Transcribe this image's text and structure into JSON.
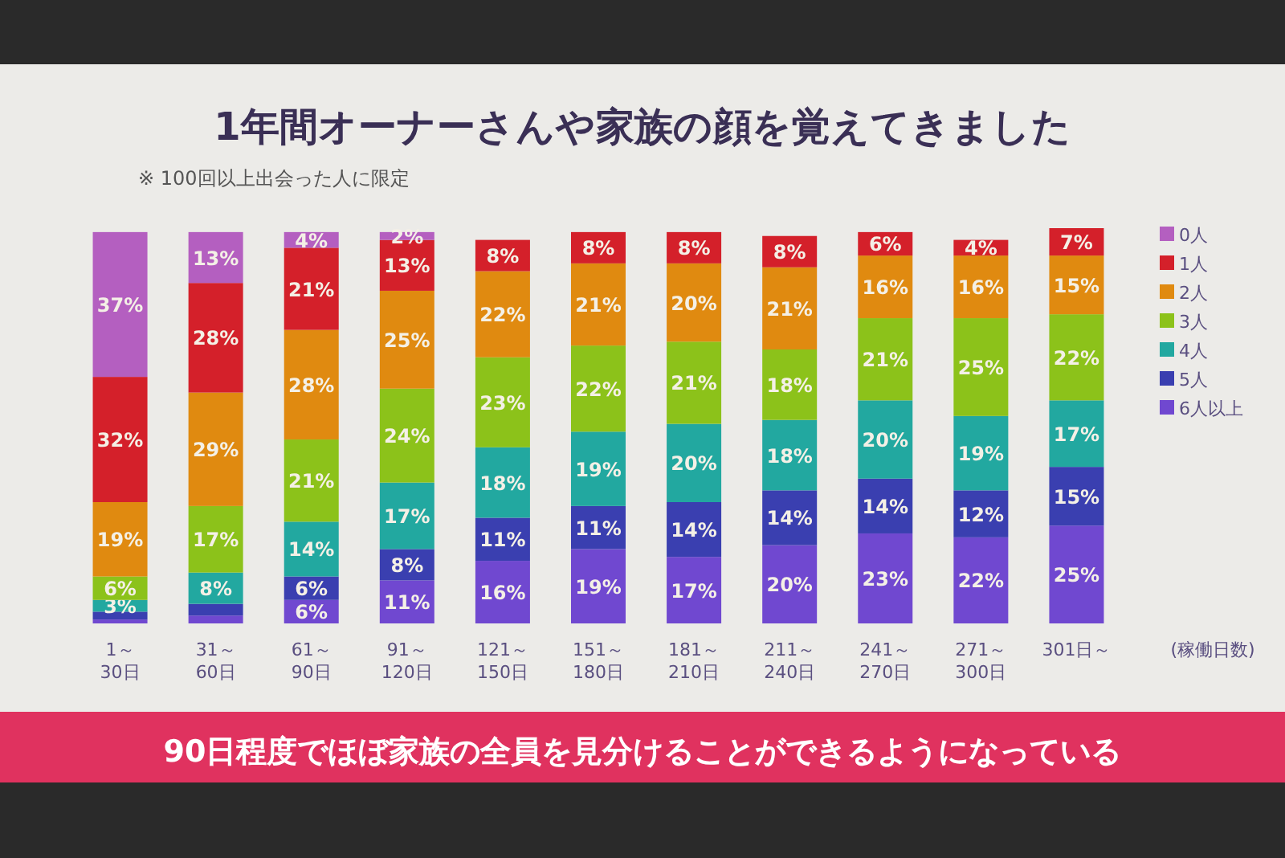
{
  "chart_data": {
    "type": "bar",
    "stacked": true,
    "title": "1年間オーナーさんや家族の顔を覚えてきました",
    "subtitle": "※ 100回以上出会った人に限定",
    "xlabel": "(稼働日数)",
    "annotations": [
      "90日程度でほぼ家族の全員を見分けることができるようになっている"
    ],
    "legend": "right",
    "categories": [
      "1～30日",
      "31～60日",
      "61～90日",
      "91～120日",
      "121～150日",
      "151～180日",
      "181～210日",
      "211～240日",
      "241～270日",
      "271～300日",
      "301日～"
    ],
    "series": [
      {
        "name": "6人以上",
        "color": "#7048d0",
        "values": [
          1,
          2,
          6,
          11,
          16,
          19,
          17,
          20,
          23,
          22,
          25
        ],
        "value_labels": [
          null,
          null,
          "6%",
          "11%",
          "16%",
          "19%",
          "17%",
          "20%",
          "23%",
          "22%",
          "25%"
        ]
      },
      {
        "name": "5人",
        "color": "#3a3fb0",
        "values": [
          2,
          3,
          6,
          8,
          11,
          11,
          14,
          14,
          14,
          12,
          15
        ],
        "value_labels": [
          null,
          null,
          "6%",
          "8%",
          "11%",
          "11%",
          "14%",
          "14%",
          "14%",
          "12%",
          "15%"
        ]
      },
      {
        "name": "4人",
        "color": "#22a8a0",
        "values": [
          3,
          8,
          14,
          17,
          18,
          19,
          20,
          18,
          20,
          19,
          17
        ],
        "value_labels": [
          "3%",
          "8%",
          "14%",
          "17%",
          "18%",
          "19%",
          "20%",
          "18%",
          "20%",
          "19%",
          "17%"
        ]
      },
      {
        "name": "3人",
        "color": "#8cc21a",
        "values": [
          6,
          17,
          21,
          24,
          23,
          22,
          21,
          18,
          21,
          25,
          22
        ],
        "value_labels": [
          "6%",
          "17%",
          "21%",
          "24%",
          "23%",
          "22%",
          "21%",
          "18%",
          "21%",
          "25%",
          "22%"
        ]
      },
      {
        "name": "2人",
        "color": "#e08a10",
        "values": [
          19,
          29,
          28,
          25,
          22,
          21,
          20,
          21,
          16,
          16,
          15
        ],
        "value_labels": [
          "19%",
          "29%",
          "28%",
          "25%",
          "22%",
          "21%",
          "20%",
          "21%",
          "16%",
          "16%",
          "15%"
        ]
      },
      {
        "name": "1人",
        "color": "#d4202a",
        "values": [
          32,
          28,
          21,
          13,
          8,
          8,
          8,
          8,
          6,
          4,
          7
        ],
        "value_labels": [
          "32%",
          "28%",
          "21%",
          "13%",
          "8%",
          "8%",
          "8%",
          "8%",
          "6%",
          "4%",
          "7%"
        ]
      },
      {
        "name": "0人",
        "color": "#b45fc0",
        "values": [
          37,
          13,
          4,
          2,
          null,
          null,
          null,
          null,
          null,
          null,
          null
        ],
        "value_labels": [
          "37%",
          "13%",
          "4%",
          "2%",
          null,
          null,
          null,
          null,
          null,
          null,
          null
        ]
      }
    ]
  }
}
